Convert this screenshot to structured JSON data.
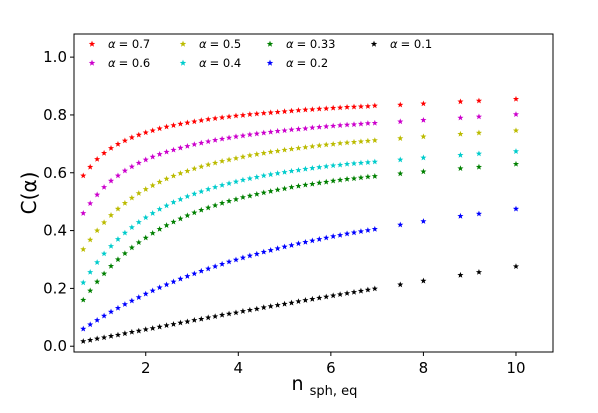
{
  "chart_data": {
    "type": "scatter",
    "title": "",
    "xlabel": "n_sph,eq",
    "xlabel_main": "n",
    "xlabel_sub": "sph, eq",
    "ylabel": "C(α)",
    "xlim": [
      0.45,
      10.8
    ],
    "ylim": [
      -0.02,
      1.08
    ],
    "xticks": [
      2,
      4,
      6,
      8,
      10
    ],
    "xtick_labels": [
      "2",
      "4",
      "6",
      "8",
      "10"
    ],
    "yticks": [
      0.0,
      0.2,
      0.4,
      0.6,
      0.8,
      1.0
    ],
    "ytick_labels": [
      "0.0",
      "0.2",
      "0.4",
      "0.6",
      "0.8",
      "1.0"
    ],
    "marker": "star",
    "grid": false,
    "legend_position": "top",
    "legend_columns": 4,
    "x": [
      0.65,
      0.8,
      0.95,
      1.1,
      1.25,
      1.4,
      1.55,
      1.7,
      1.85,
      2.0,
      2.15,
      2.3,
      2.45,
      2.6,
      2.75,
      2.9,
      3.05,
      3.2,
      3.35,
      3.5,
      3.65,
      3.8,
      3.95,
      4.1,
      4.25,
      4.4,
      4.55,
      4.7,
      4.85,
      5.0,
      5.15,
      5.3,
      5.45,
      5.6,
      5.75,
      5.9,
      6.05,
      6.2,
      6.35,
      6.5,
      6.65,
      6.8,
      6.95,
      7.5,
      8.0,
      8.8,
      9.2,
      10.0
    ],
    "series": [
      {
        "name": "α = 0.7",
        "legend_symbol": "α",
        "legend_value": "= 0.7",
        "color": "#ff0000",
        "values": [
          0.59,
          0.62,
          0.647,
          0.668,
          0.685,
          0.699,
          0.711,
          0.722,
          0.731,
          0.739,
          0.746,
          0.753,
          0.759,
          0.764,
          0.769,
          0.773,
          0.777,
          0.781,
          0.785,
          0.788,
          0.791,
          0.794,
          0.797,
          0.799,
          0.802,
          0.804,
          0.806,
          0.808,
          0.81,
          0.812,
          0.814,
          0.816,
          0.818,
          0.819,
          0.821,
          0.822,
          0.824,
          0.825,
          0.827,
          0.828,
          0.829,
          0.83,
          0.832,
          0.835,
          0.839,
          0.846,
          0.849,
          0.855
        ]
      },
      {
        "name": "α = 0.6",
        "legend_symbol": "α",
        "legend_value": "= 0.6",
        "color": "#cc00cc",
        "values": [
          0.46,
          0.494,
          0.524,
          0.55,
          0.572,
          0.59,
          0.607,
          0.621,
          0.634,
          0.645,
          0.655,
          0.664,
          0.672,
          0.679,
          0.686,
          0.692,
          0.698,
          0.703,
          0.708,
          0.713,
          0.717,
          0.721,
          0.725,
          0.728,
          0.732,
          0.735,
          0.738,
          0.741,
          0.744,
          0.746,
          0.749,
          0.751,
          0.753,
          0.756,
          0.758,
          0.76,
          0.762,
          0.764,
          0.766,
          0.767,
          0.769,
          0.771,
          0.772,
          0.777,
          0.782,
          0.79,
          0.794,
          0.802
        ]
      },
      {
        "name": "α = 0.5",
        "legend_symbol": "α",
        "legend_value": "= 0.5",
        "color": "#bbbb00",
        "values": [
          0.335,
          0.368,
          0.4,
          0.428,
          0.453,
          0.475,
          0.495,
          0.513,
          0.529,
          0.543,
          0.556,
          0.568,
          0.579,
          0.589,
          0.598,
          0.606,
          0.614,
          0.621,
          0.628,
          0.634,
          0.64,
          0.645,
          0.65,
          0.655,
          0.66,
          0.664,
          0.668,
          0.672,
          0.675,
          0.679,
          0.682,
          0.685,
          0.688,
          0.691,
          0.694,
          0.697,
          0.699,
          0.702,
          0.704,
          0.706,
          0.708,
          0.71,
          0.712,
          0.719,
          0.725,
          0.734,
          0.738,
          0.746
        ]
      },
      {
        "name": "α = 0.4",
        "legend_symbol": "α",
        "legend_value": "= 0.4",
        "color": "#00cccc",
        "values": [
          0.22,
          0.256,
          0.29,
          0.32,
          0.346,
          0.37,
          0.392,
          0.411,
          0.429,
          0.445,
          0.46,
          0.474,
          0.486,
          0.498,
          0.508,
          0.518,
          0.527,
          0.535,
          0.543,
          0.55,
          0.557,
          0.563,
          0.569,
          0.575,
          0.58,
          0.585,
          0.59,
          0.594,
          0.598,
          0.602,
          0.606,
          0.609,
          0.613,
          0.616,
          0.619,
          0.622,
          0.625,
          0.627,
          0.63,
          0.632,
          0.634,
          0.636,
          0.638,
          0.645,
          0.652,
          0.661,
          0.666,
          0.674
        ]
      },
      {
        "name": "α = 0.33",
        "legend_symbol": "α",
        "legend_value": "= 0.33",
        "color": "#008000",
        "values": [
          0.16,
          0.192,
          0.223,
          0.251,
          0.277,
          0.3,
          0.321,
          0.341,
          0.359,
          0.375,
          0.391,
          0.405,
          0.418,
          0.43,
          0.441,
          0.452,
          0.462,
          0.471,
          0.479,
          0.487,
          0.495,
          0.502,
          0.508,
          0.515,
          0.52,
          0.526,
          0.531,
          0.536,
          0.541,
          0.545,
          0.55,
          0.554,
          0.558,
          0.561,
          0.565,
          0.568,
          0.572,
          0.575,
          0.578,
          0.58,
          0.583,
          0.586,
          0.588,
          0.597,
          0.604,
          0.615,
          0.62,
          0.63
        ]
      },
      {
        "name": "α = 0.2",
        "legend_symbol": "α",
        "legend_value": "= 0.2",
        "color": "#0000ff",
        "values": [
          0.06,
          0.075,
          0.09,
          0.105,
          0.119,
          0.132,
          0.145,
          0.157,
          0.169,
          0.181,
          0.192,
          0.203,
          0.213,
          0.223,
          0.233,
          0.242,
          0.251,
          0.26,
          0.268,
          0.276,
          0.284,
          0.292,
          0.299,
          0.306,
          0.313,
          0.319,
          0.326,
          0.332,
          0.338,
          0.344,
          0.349,
          0.355,
          0.36,
          0.365,
          0.37,
          0.375,
          0.38,
          0.384,
          0.389,
          0.393,
          0.397,
          0.401,
          0.405,
          0.42,
          0.432,
          0.45,
          0.458,
          0.475
        ]
      },
      {
        "name": "α = 0.1",
        "legend_symbol": "α",
        "legend_value": "= 0.1",
        "color": "#000000",
        "values": [
          0.017,
          0.021,
          0.026,
          0.03,
          0.035,
          0.039,
          0.044,
          0.049,
          0.053,
          0.058,
          0.062,
          0.067,
          0.072,
          0.076,
          0.081,
          0.085,
          0.09,
          0.094,
          0.099,
          0.103,
          0.108,
          0.112,
          0.116,
          0.121,
          0.125,
          0.129,
          0.134,
          0.138,
          0.142,
          0.146,
          0.15,
          0.155,
          0.159,
          0.163,
          0.167,
          0.171,
          0.175,
          0.179,
          0.183,
          0.187,
          0.191,
          0.195,
          0.199,
          0.213,
          0.226,
          0.246,
          0.256,
          0.276
        ]
      }
    ]
  }
}
